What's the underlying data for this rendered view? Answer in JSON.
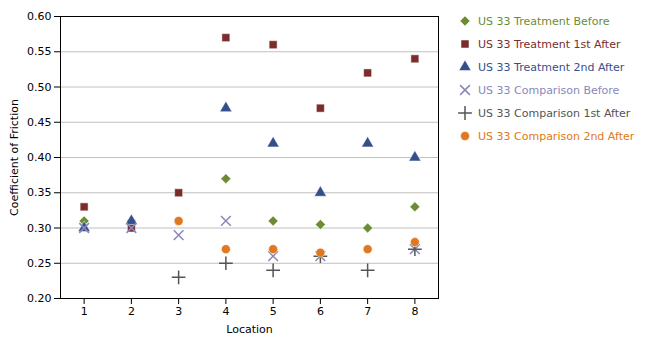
{
  "chart_data": {
    "type": "scatter",
    "xlabel": "Location",
    "ylabel": "Coefficient of Friction",
    "xlim": [
      0.5,
      8.5
    ],
    "ylim": [
      0.2,
      0.6
    ],
    "xticks": [
      1,
      2,
      3,
      4,
      5,
      6,
      7,
      8
    ],
    "yticks": [
      {
        "value": 0.2,
        "label": "0.20"
      },
      0.25,
      {
        "value": 0.3,
        "label": "0.30"
      },
      0.35,
      {
        "value": 0.4,
        "label": "0.40"
      },
      0.45,
      {
        "value": 0.5,
        "label": "0.50"
      },
      0.55,
      {
        "value": 0.6,
        "label": "0.60"
      }
    ],
    "grid": "y",
    "legend": "right",
    "series": [
      {
        "name": "US 33 Treatment Before",
        "color": "#6b8c35",
        "marker": "diamond",
        "x": [
          1,
          2,
          4,
          5,
          6,
          7,
          8
        ],
        "values": [
          0.31,
          0.31,
          0.37,
          0.31,
          0.305,
          0.3,
          0.33
        ]
      },
      {
        "name": "US 33 Treatment 1st After",
        "color": "#7b2c2c",
        "marker": "square",
        "x": [
          1,
          2,
          3,
          4,
          5,
          6,
          7,
          8
        ],
        "values": [
          0.33,
          0.3,
          0.35,
          0.57,
          0.56,
          0.47,
          0.52,
          0.54
        ]
      },
      {
        "name": "US 33 Treatment 2nd After",
        "color": "#354f8c",
        "marker": "triangle",
        "x": [
          1,
          2,
          4,
          5,
          6,
          7,
          8
        ],
        "values": [
          0.3,
          0.31,
          0.47,
          0.42,
          0.35,
          0.42,
          0.4
        ]
      },
      {
        "name": "US 33 Comparison Before",
        "color": "#8888bb",
        "marker": "x",
        "x": [
          1,
          2,
          3,
          4,
          5,
          6,
          8
        ],
        "values": [
          0.3,
          0.3,
          0.29,
          0.31,
          0.26,
          0.26,
          0.27
        ]
      },
      {
        "name": "US 33 Comparison 1st After",
        "color": "#555555",
        "marker": "plus",
        "x": [
          3,
          4,
          5,
          6,
          7,
          8
        ],
        "values": [
          0.23,
          0.25,
          0.24,
          0.26,
          0.24,
          0.27
        ]
      },
      {
        "name": "US 33 Comparison 2nd After",
        "color": "#e07820",
        "marker": "circle",
        "x": [
          3,
          4,
          5,
          6,
          7,
          8
        ],
        "values": [
          0.31,
          0.27,
          0.27,
          0.265,
          0.27,
          0.28
        ]
      }
    ]
  }
}
